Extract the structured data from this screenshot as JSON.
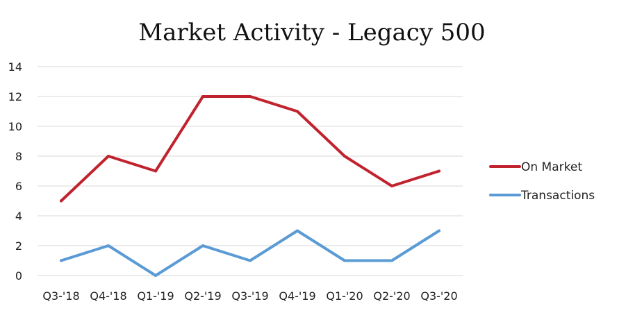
{
  "chart_data": {
    "type": "line",
    "title": "Market Activity - Legacy 500",
    "xlabel": "",
    "ylabel": "",
    "categories": [
      "Q3-'18",
      "Q4-'18",
      "Q1-'19",
      "Q2-'19",
      "Q3-'19",
      "Q4-'19",
      "Q1-'20",
      "Q2-'20",
      "Q3-'20"
    ],
    "ylim": [
      0,
      14
    ],
    "yticks": [
      "0",
      "2",
      "4",
      "6",
      "8",
      "10",
      "12",
      "14"
    ],
    "grid": true,
    "legend_position": "right",
    "series": [
      {
        "name": "On Market",
        "color": "#c1232e",
        "values": [
          5,
          8,
          7,
          12,
          12,
          11,
          8,
          6,
          7
        ]
      },
      {
        "name": "Transactions",
        "color": "#5b9bd5",
        "values": [
          1,
          2,
          0,
          2,
          1,
          3,
          1,
          1,
          3
        ]
      }
    ]
  }
}
